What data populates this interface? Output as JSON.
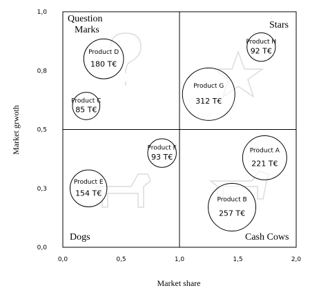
{
  "chart_data": {
    "type": "bubble",
    "xlabel": "Market share",
    "ylabel": "Market grwoth",
    "xlim": [
      0,
      2.0
    ],
    "ylim": [
      0,
      1.0
    ],
    "x_ticks": [
      "0,0",
      "0,5",
      "1,0",
      "1,5",
      "2,0"
    ],
    "y_ticks": [
      "0,0",
      "0,3",
      "0,5",
      "0,8",
      "1,0"
    ],
    "quadrants": {
      "top_left": "Question Marks",
      "top_right": "Stars",
      "bottom_left": "Dogs",
      "bottom_right": "Cash Cows"
    },
    "quadrant_lines": {
      "x": 1.0,
      "y": 0.5
    },
    "grid": false,
    "unit": "T€",
    "points": [
      {
        "label": "Product A",
        "x": 1.73,
        "y": 0.38,
        "value": 221,
        "text": "221 T€"
      },
      {
        "label": "Product B",
        "x": 1.45,
        "y": 0.17,
        "value": 257,
        "text": "257 T€"
      },
      {
        "label": "Product C",
        "x": 0.2,
        "y": 0.6,
        "value": 85,
        "text": "85 T€"
      },
      {
        "label": "Product D",
        "x": 0.35,
        "y": 0.8,
        "value": 180,
        "text": "180 T€"
      },
      {
        "label": "Product E",
        "x": 0.22,
        "y": 0.25,
        "value": 154,
        "text": "154 T€"
      },
      {
        "label": "Product F",
        "x": 0.85,
        "y": 0.4,
        "value": 93,
        "text": "93 T€"
      },
      {
        "label": "Product G",
        "x": 1.25,
        "y": 0.65,
        "value": 312,
        "text": "312 T€"
      },
      {
        "label": "Product H",
        "x": 1.7,
        "y": 0.85,
        "value": 92,
        "text": "92 T€"
      }
    ]
  },
  "background_icons": [
    "question-mark-icon",
    "star-icon",
    "dog-icon",
    "cow-icon"
  ]
}
